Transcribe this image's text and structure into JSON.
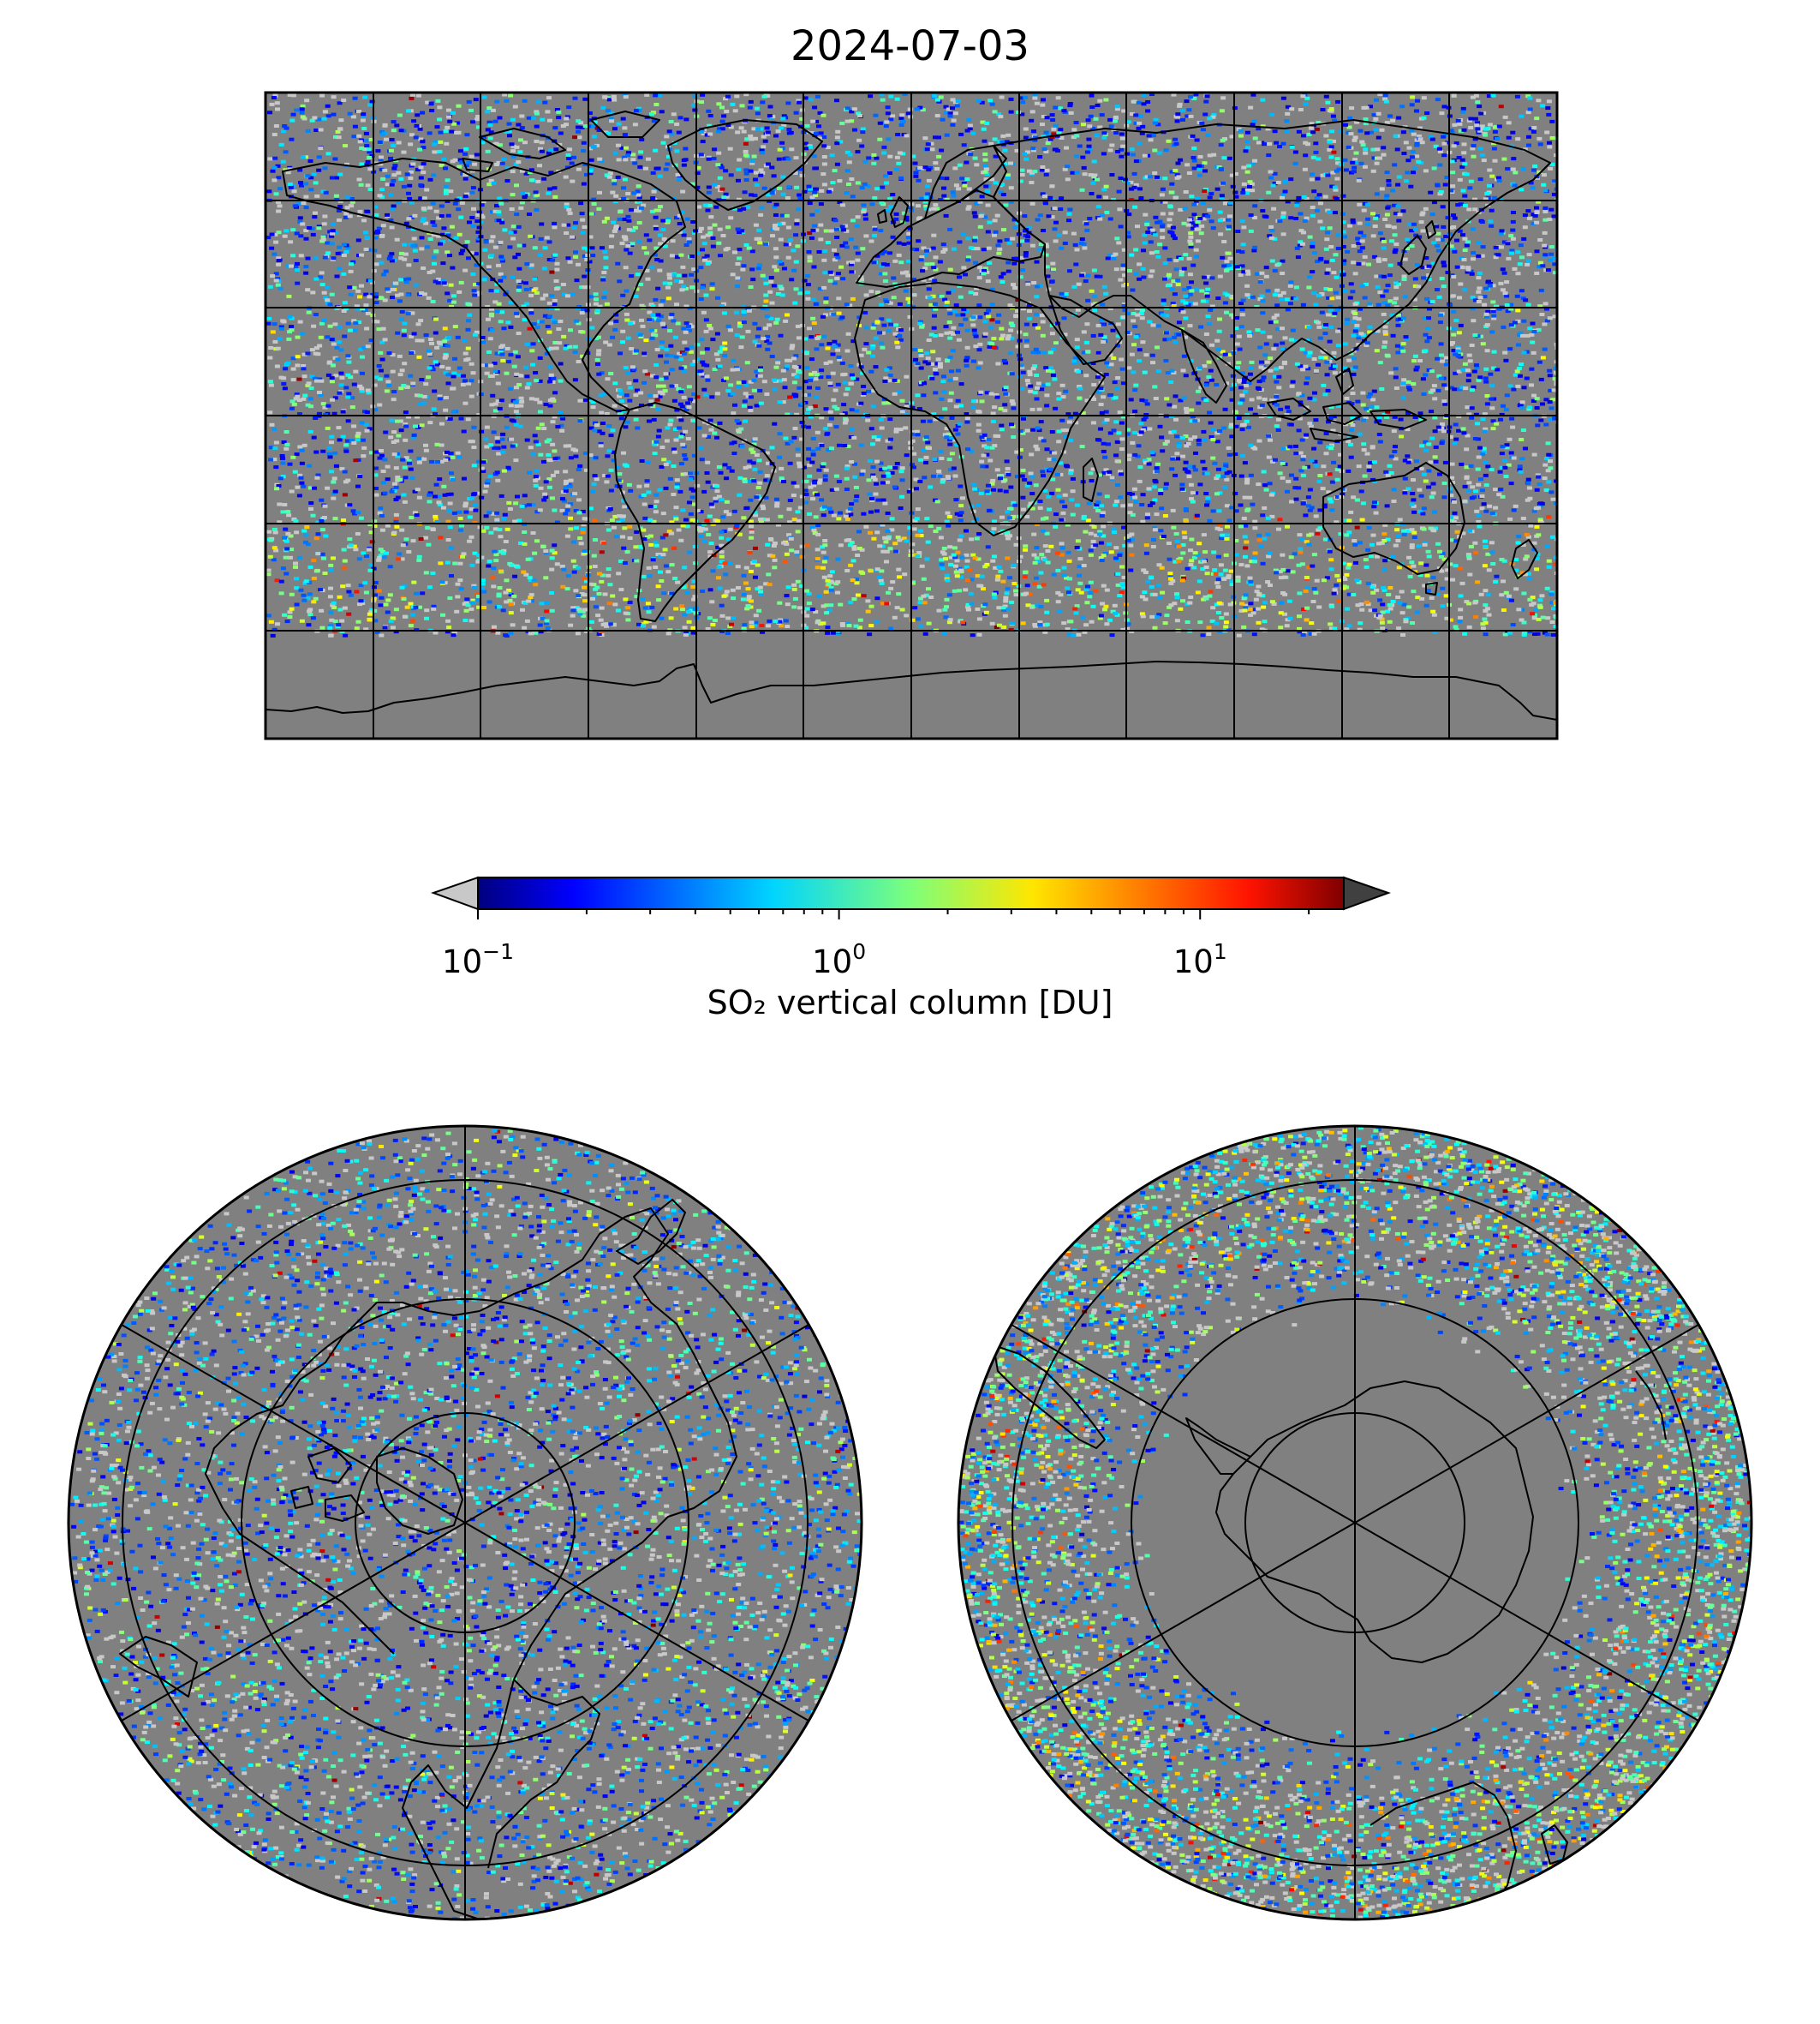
{
  "title": "2024-07-03",
  "colorbar": {
    "label": "SO₂ vertical column [DU]",
    "scale": "log",
    "range": [
      0.1,
      25
    ],
    "colormap": "jet",
    "extend": "both",
    "under_color": "#c8c8c8",
    "over_color": "#404040",
    "ticks": [
      {
        "value": 0.1,
        "base": "10",
        "exp": "−1"
      },
      {
        "value": 1,
        "base": "10",
        "exp": "0"
      },
      {
        "value": 10,
        "base": "10",
        "exp": "1"
      }
    ]
  },
  "colors": {
    "background_no_data": "#808080",
    "below_range": "#c8c8c8",
    "coastline": "#000000",
    "gridline": "#000000"
  },
  "maps": {
    "global": {
      "projection": "plate-carree",
      "lon_range": [
        -180,
        180
      ],
      "lat_range": [
        -90,
        90
      ],
      "grid_spacing_lon": 30,
      "grid_spacing_lat": 30
    },
    "north_polar": {
      "projection": "north-polar-stereographic",
      "lat_circles": [
        80,
        60,
        40,
        20
      ]
    },
    "south_polar": {
      "projection": "south-polar-stereographic",
      "lat_circles": [
        -80,
        -60,
        -40,
        -20
      ]
    }
  }
}
